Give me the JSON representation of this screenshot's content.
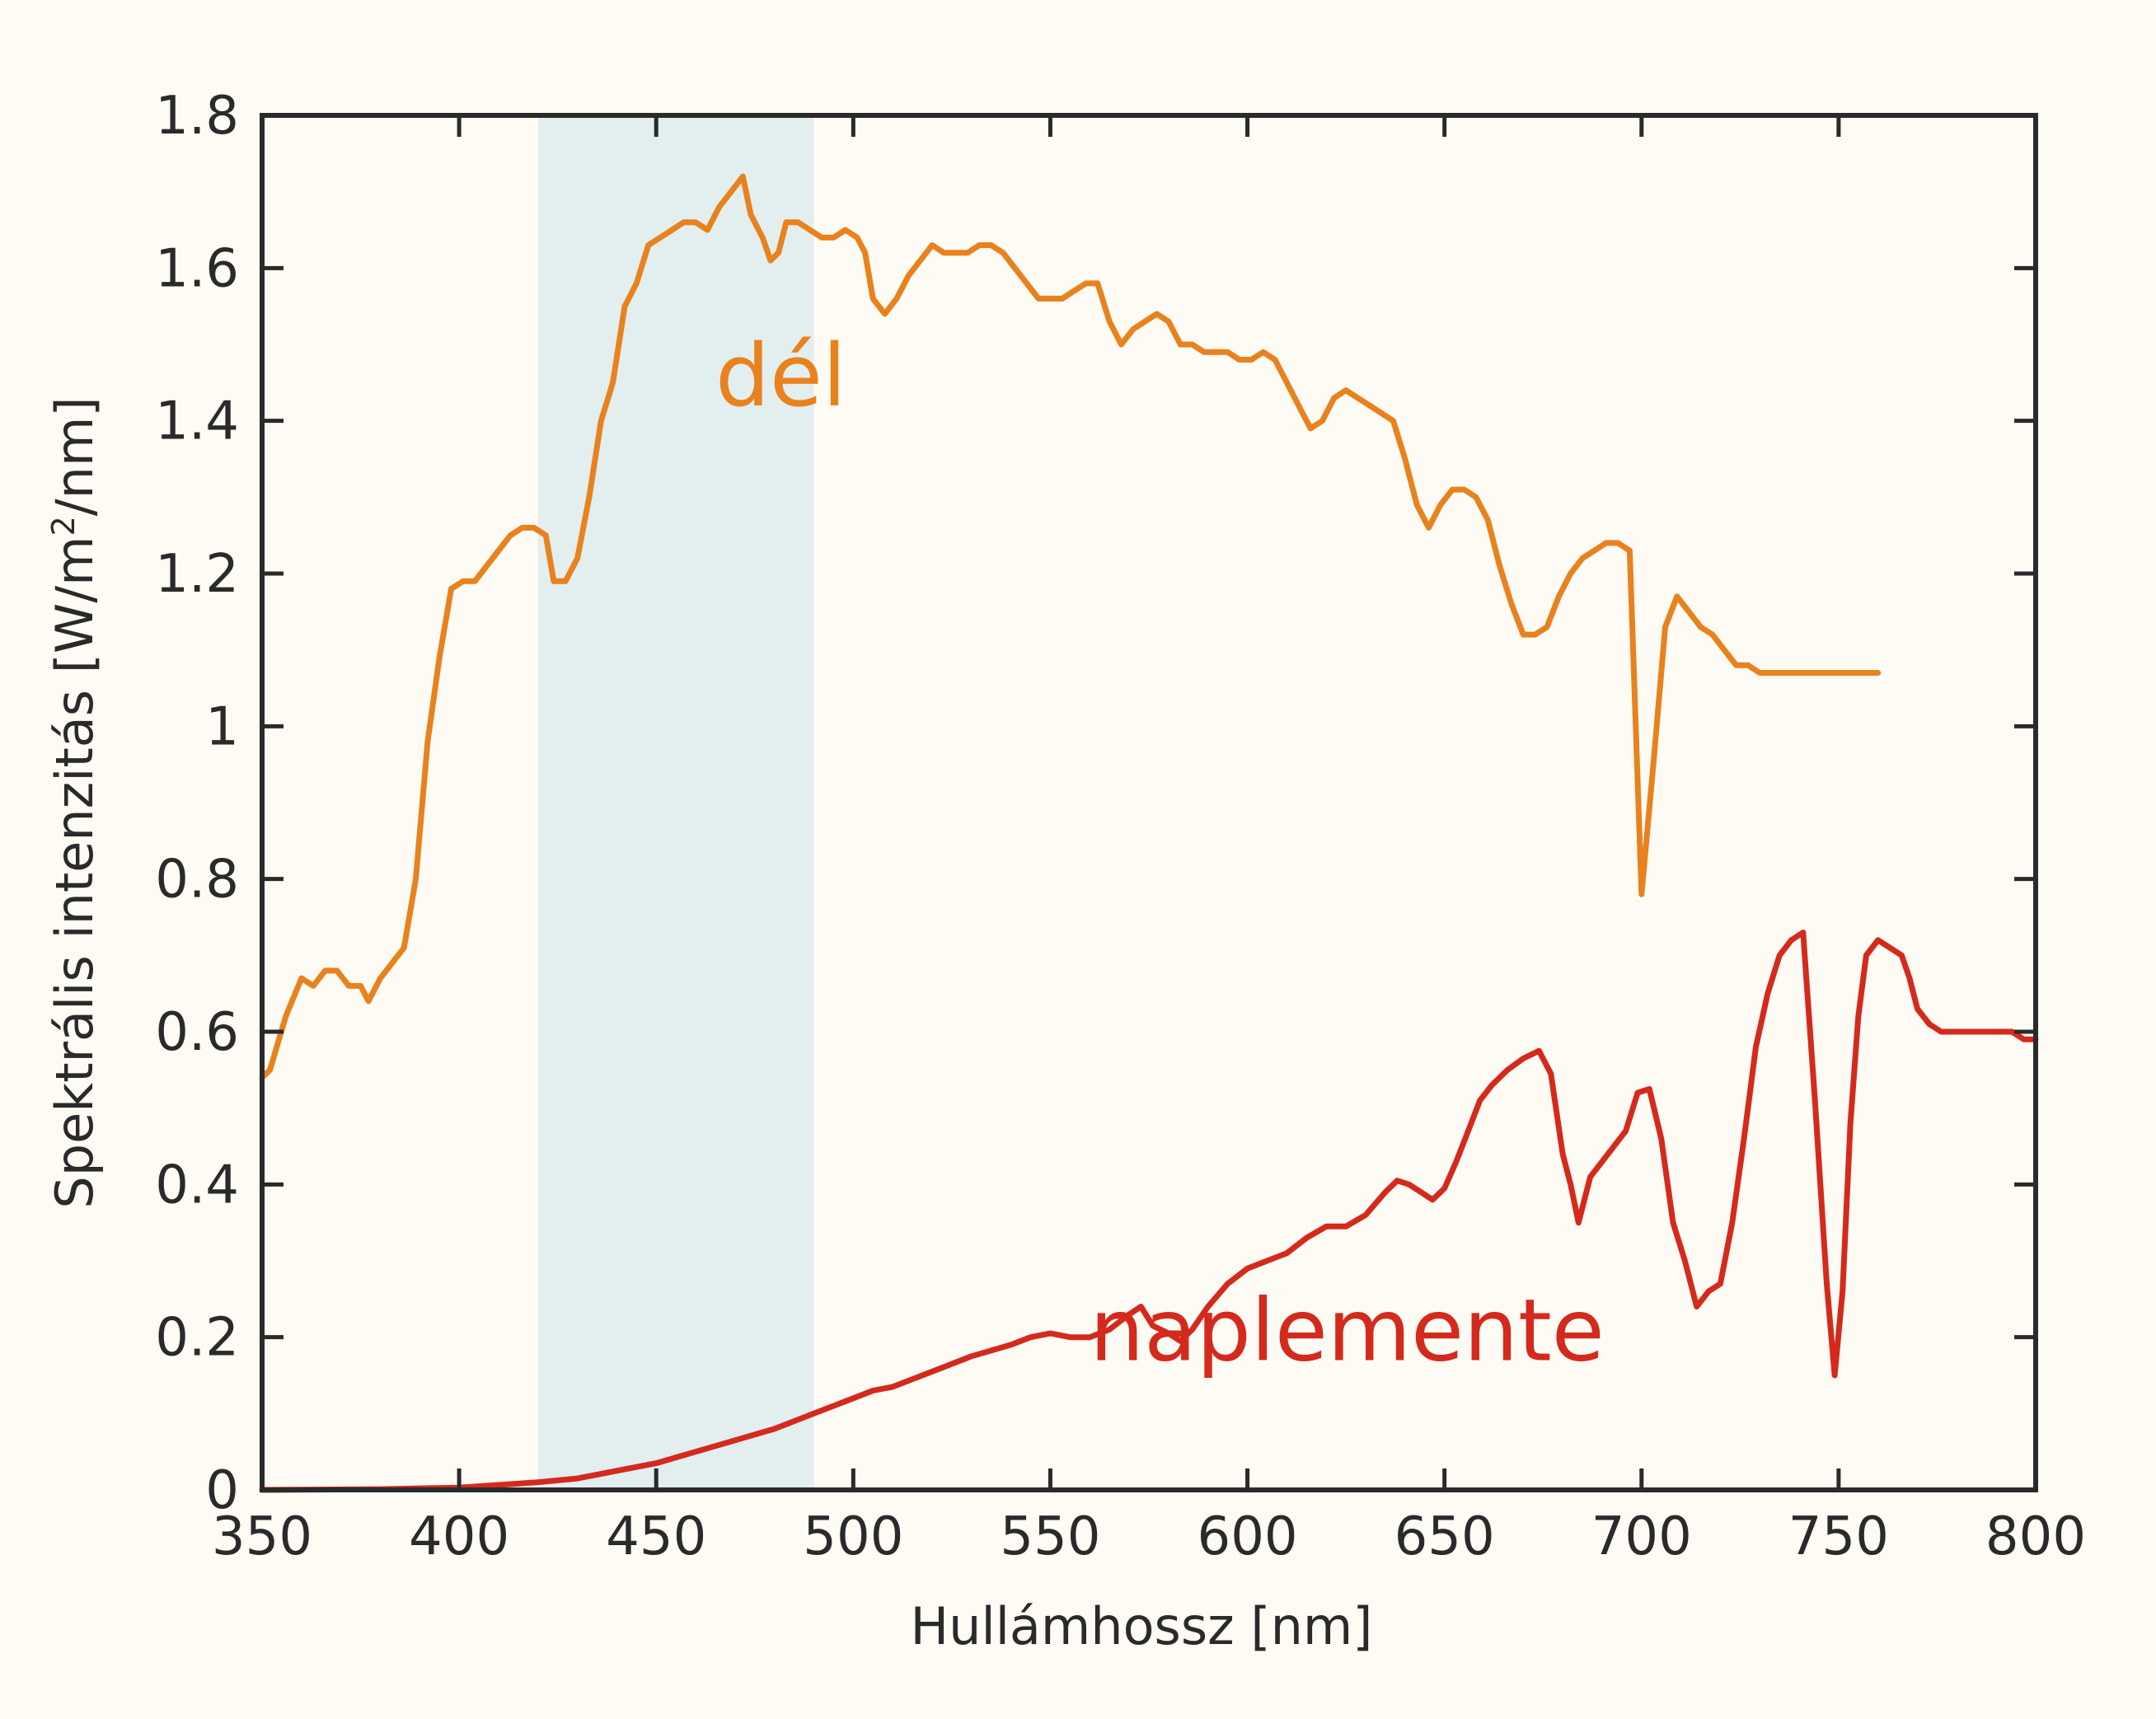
{
  "chart_data": {
    "type": "line",
    "title": "",
    "xlabel": "Hullámhossz [nm]",
    "ylabel_prefix": "Spektrális intenzitás [W/m",
    "ylabel_sup": "2",
    "ylabel_suffix": "/nm]",
    "xlim": [
      350,
      800
    ],
    "ylim": [
      0,
      1.8
    ],
    "x_ticks": [
      350,
      400,
      450,
      500,
      550,
      600,
      650,
      700,
      750,
      800
    ],
    "x_tick_labels": [
      "350",
      "400",
      "450",
      "500",
      "550",
      "600",
      "650",
      "700",
      "750",
      "800"
    ],
    "y_ticks": [
      0,
      0.2,
      0.4,
      0.6,
      0.8,
      1.0,
      1.2,
      1.4,
      1.6,
      1.8
    ],
    "y_tick_labels": [
      "0",
      "0.2",
      "0.4",
      "0.6",
      "0.8",
      "1",
      "1.2",
      "1.4",
      "1.6",
      "1.8"
    ],
    "grid": false,
    "legend": "none",
    "shaded_band": {
      "x": [
        420,
        490
      ],
      "color": "#e3eeee"
    },
    "series": [
      {
        "name": "dél",
        "color": "#e8821e",
        "label_at": [
          465,
          1.42
        ],
        "points": [
          [
            350,
            0.54
          ],
          [
            352,
            0.55
          ],
          [
            356,
            0.62
          ],
          [
            360,
            0.67
          ],
          [
            363,
            0.66
          ],
          [
            366,
            0.68
          ],
          [
            369,
            0.68
          ],
          [
            372,
            0.66
          ],
          [
            375,
            0.66
          ],
          [
            377,
            0.64
          ],
          [
            380,
            0.67
          ],
          [
            383,
            0.69
          ],
          [
            386,
            0.71
          ],
          [
            389,
            0.8
          ],
          [
            392,
            0.98
          ],
          [
            395,
            1.09
          ],
          [
            398,
            1.18
          ],
          [
            401,
            1.19
          ],
          [
            404,
            1.19
          ],
          [
            407,
            1.21
          ],
          [
            410,
            1.23
          ],
          [
            413,
            1.25
          ],
          [
            416,
            1.26
          ],
          [
            419,
            1.26
          ],
          [
            422,
            1.25
          ],
          [
            424,
            1.19
          ],
          [
            427,
            1.19
          ],
          [
            430,
            1.22
          ],
          [
            433,
            1.3
          ],
          [
            436,
            1.4
          ],
          [
            439,
            1.45
          ],
          [
            442,
            1.55
          ],
          [
            445,
            1.58
          ],
          [
            448,
            1.63
          ],
          [
            451,
            1.64
          ],
          [
            454,
            1.65
          ],
          [
            457,
            1.66
          ],
          [
            460,
            1.66
          ],
          [
            463,
            1.65
          ],
          [
            466,
            1.68
          ],
          [
            469,
            1.7
          ],
          [
            472,
            1.72
          ],
          [
            474,
            1.67
          ],
          [
            477,
            1.64
          ],
          [
            479,
            1.61
          ],
          [
            481,
            1.62
          ],
          [
            483,
            1.66
          ],
          [
            486,
            1.66
          ],
          [
            489,
            1.65
          ],
          [
            492,
            1.64
          ],
          [
            495,
            1.64
          ],
          [
            498,
            1.65
          ],
          [
            501,
            1.64
          ],
          [
            503,
            1.62
          ],
          [
            505,
            1.56
          ],
          [
            508,
            1.54
          ],
          [
            511,
            1.56
          ],
          [
            514,
            1.59
          ],
          [
            517,
            1.61
          ],
          [
            520,
            1.63
          ],
          [
            523,
            1.62
          ],
          [
            526,
            1.62
          ],
          [
            529,
            1.62
          ],
          [
            532,
            1.63
          ],
          [
            535,
            1.63
          ],
          [
            538,
            1.62
          ],
          [
            541,
            1.6
          ],
          [
            544,
            1.58
          ],
          [
            547,
            1.56
          ],
          [
            550,
            1.56
          ],
          [
            553,
            1.56
          ],
          [
            556,
            1.57
          ],
          [
            559,
            1.58
          ],
          [
            562,
            1.58
          ],
          [
            565,
            1.53
          ],
          [
            568,
            1.5
          ],
          [
            571,
            1.52
          ],
          [
            574,
            1.53
          ],
          [
            577,
            1.54
          ],
          [
            580,
            1.53
          ],
          [
            583,
            1.5
          ],
          [
            586,
            1.5
          ],
          [
            589,
            1.49
          ],
          [
            592,
            1.49
          ],
          [
            595,
            1.49
          ],
          [
            598,
            1.48
          ],
          [
            601,
            1.48
          ],
          [
            604,
            1.49
          ],
          [
            607,
            1.48
          ],
          [
            610,
            1.45
          ],
          [
            613,
            1.42
          ],
          [
            616,
            1.39
          ],
          [
            619,
            1.4
          ],
          [
            622,
            1.43
          ],
          [
            625,
            1.44
          ],
          [
            628,
            1.43
          ],
          [
            631,
            1.42
          ],
          [
            634,
            1.41
          ],
          [
            637,
            1.4
          ],
          [
            640,
            1.35
          ],
          [
            643,
            1.29
          ],
          [
            646,
            1.26
          ],
          [
            649,
            1.29
          ],
          [
            652,
            1.31
          ],
          [
            655,
            1.31
          ],
          [
            658,
            1.3
          ],
          [
            661,
            1.27
          ],
          [
            664,
            1.21
          ],
          [
            667,
            1.16
          ],
          [
            670,
            1.12
          ],
          [
            673,
            1.12
          ],
          [
            676,
            1.13
          ],
          [
            679,
            1.17
          ],
          [
            682,
            1.2
          ],
          [
            685,
            1.22
          ],
          [
            688,
            1.23
          ],
          [
            691,
            1.24
          ],
          [
            694,
            1.24
          ],
          [
            697,
            1.23
          ],
          [
            700,
            0.78
          ],
          [
            703,
            0.95
          ],
          [
            706,
            1.13
          ],
          [
            709,
            1.17
          ],
          [
            712,
            1.15
          ],
          [
            715,
            1.13
          ],
          [
            718,
            1.12
          ],
          [
            721,
            1.1
          ],
          [
            724,
            1.08
          ],
          [
            727,
            1.08
          ],
          [
            730,
            1.07
          ],
          [
            733,
            1.07
          ],
          [
            736,
            1.07
          ],
          [
            739,
            1.07
          ],
          [
            742,
            1.07
          ],
          [
            745,
            1.07
          ],
          [
            748,
            1.07
          ],
          [
            751,
            1.07
          ],
          [
            754,
            1.07
          ],
          [
            757,
            1.07
          ],
          [
            760,
            1.07
          ]
        ]
      },
      {
        "name": "naplemente",
        "color": "#d42a1e",
        "label_at": [
          560,
          0.17
        ],
        "points": [
          [
            350,
            0.0
          ],
          [
            380,
            0.001
          ],
          [
            400,
            0.003
          ],
          [
            420,
            0.01
          ],
          [
            430,
            0.015
          ],
          [
            440,
            0.025
          ],
          [
            450,
            0.035
          ],
          [
            460,
            0.05
          ],
          [
            470,
            0.065
          ],
          [
            480,
            0.08
          ],
          [
            490,
            0.1
          ],
          [
            500,
            0.12
          ],
          [
            505,
            0.13
          ],
          [
            510,
            0.135
          ],
          [
            520,
            0.155
          ],
          [
            530,
            0.175
          ],
          [
            540,
            0.19
          ],
          [
            545,
            0.2
          ],
          [
            550,
            0.205
          ],
          [
            555,
            0.2
          ],
          [
            560,
            0.2
          ],
          [
            565,
            0.21
          ],
          [
            570,
            0.23
          ],
          [
            573,
            0.24
          ],
          [
            576,
            0.215
          ],
          [
            580,
            0.205
          ],
          [
            583,
            0.195
          ],
          [
            586,
            0.21
          ],
          [
            590,
            0.24
          ],
          [
            595,
            0.27
          ],
          [
            600,
            0.29
          ],
          [
            605,
            0.3
          ],
          [
            610,
            0.31
          ],
          [
            615,
            0.33
          ],
          [
            620,
            0.345
          ],
          [
            625,
            0.345
          ],
          [
            630,
            0.36
          ],
          [
            635,
            0.39
          ],
          [
            638,
            0.405
          ],
          [
            641,
            0.4
          ],
          [
            644,
            0.39
          ],
          [
            647,
            0.38
          ],
          [
            650,
            0.395
          ],
          [
            653,
            0.43
          ],
          [
            656,
            0.47
          ],
          [
            659,
            0.51
          ],
          [
            662,
            0.53
          ],
          [
            666,
            0.55
          ],
          [
            670,
            0.565
          ],
          [
            674,
            0.575
          ],
          [
            677,
            0.545
          ],
          [
            680,
            0.44
          ],
          [
            682,
            0.4
          ],
          [
            684,
            0.35
          ],
          [
            687,
            0.41
          ],
          [
            690,
            0.43
          ],
          [
            693,
            0.45
          ],
          [
            696,
            0.47
          ],
          [
            699,
            0.52
          ],
          [
            702,
            0.525
          ],
          [
            705,
            0.46
          ],
          [
            708,
            0.35
          ],
          [
            711,
            0.3
          ],
          [
            714,
            0.24
          ],
          [
            717,
            0.26
          ],
          [
            720,
            0.27
          ],
          [
            723,
            0.35
          ],
          [
            726,
            0.46
          ],
          [
            729,
            0.58
          ],
          [
            732,
            0.65
          ],
          [
            735,
            0.7
          ],
          [
            738,
            0.72
          ],
          [
            741,
            0.73
          ],
          [
            744,
            0.51
          ],
          [
            747,
            0.27
          ],
          [
            749,
            0.15
          ],
          [
            751,
            0.26
          ],
          [
            753,
            0.48
          ],
          [
            755,
            0.62
          ],
          [
            757,
            0.7
          ],
          [
            760,
            0.72
          ],
          [
            763,
            0.71
          ],
          [
            766,
            0.7
          ],
          [
            768,
            0.67
          ],
          [
            770,
            0.63
          ],
          [
            773,
            0.61
          ],
          [
            776,
            0.6
          ],
          [
            779,
            0.6
          ],
          [
            782,
            0.6
          ],
          [
            785,
            0.6
          ],
          [
            788,
            0.6
          ],
          [
            791,
            0.6
          ],
          [
            794,
            0.6
          ],
          [
            797,
            0.59
          ],
          [
            800,
            0.59
          ]
        ]
      }
    ]
  }
}
